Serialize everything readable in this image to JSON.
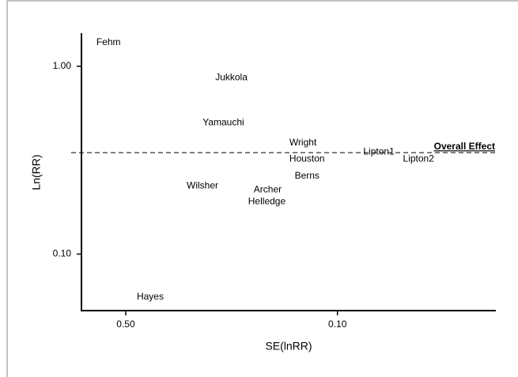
{
  "chart_data": {
    "type": "scatter",
    "x_label": "SE(lnRR)",
    "y_label": "Ln(RR)",
    "xscale": "log",
    "yscale": "log",
    "x_reversed": true,
    "xlim": [
      0.7,
      0.03
    ],
    "ylim": [
      0.05,
      1.5
    ],
    "xticks": [
      {
        "value": 0.5,
        "label": "0.50"
      },
      {
        "value": 0.1,
        "label": "0.10"
      }
    ],
    "yticks": [
      {
        "value": 1,
        "label": "1.00"
      },
      {
        "value": 0.1,
        "label": "0.10"
      }
    ],
    "color": "#000000",
    "points": [
      {
        "label": "Fehm",
        "x": 0.57,
        "y": 1.34
      },
      {
        "label": "Jukkola",
        "x": 0.224,
        "y": 0.87
      },
      {
        "label": "Yamauchi",
        "x": 0.238,
        "y": 0.5
      },
      {
        "label": "Wright",
        "x": 0.13,
        "y": 0.39
      },
      {
        "label": "Houston",
        "x": 0.126,
        "y": 0.32
      },
      {
        "label": "Lipton1",
        "x": 0.073,
        "y": 0.35
      },
      {
        "label": "Lipton2",
        "x": 0.054,
        "y": 0.32
      },
      {
        "label": "Berns",
        "x": 0.126,
        "y": 0.26
      },
      {
        "label": "Wilsher",
        "x": 0.279,
        "y": 0.23
      },
      {
        "label": "Archer",
        "x": 0.17,
        "y": 0.22
      },
      {
        "label": "Helledge",
        "x": 0.171,
        "y": 0.19
      },
      {
        "label": "Hayes",
        "x": 0.415,
        "y": 0.059
      }
    ],
    "reference_line": {
      "label": "Overall Effect",
      "value": 0.347
    }
  }
}
